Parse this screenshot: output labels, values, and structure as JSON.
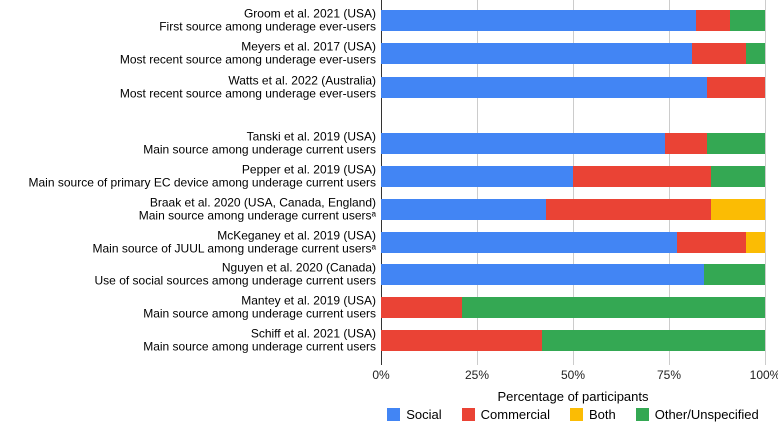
{
  "chart_data": {
    "type": "bar",
    "stacked": true,
    "orientation": "horizontal",
    "title": "",
    "xlabel": "Percentage of participants",
    "ylabel": "",
    "xlim": [
      0,
      100
    ],
    "grid": true,
    "legend_position": "bottom",
    "x_tick_values": [
      0,
      25,
      50,
      75,
      100
    ],
    "x_tick_labels": [
      "0%",
      "25%",
      "50%",
      "75%",
      "100%"
    ],
    "series": [
      "Social",
      "Commercial",
      "Both",
      "Other/Unspecified"
    ],
    "colors": {
      "social": "#4285F4",
      "commercial": "#EA4335",
      "both": "#FBBC04",
      "other_unspecified": "#34A853"
    },
    "legend": [
      {
        "label": "Social",
        "color": "#4285F4"
      },
      {
        "label": "Commercial",
        "color": "#EA4335"
      },
      {
        "label": "Both",
        "color": "#FBBC04"
      },
      {
        "label": "Other/Unspecified",
        "color": "#34A853"
      }
    ],
    "rows": [
      {
        "group": 1,
        "study": "Groom et al. 2021 (USA)",
        "measure": "First source among underage ever-users",
        "values": [
          82,
          9,
          0,
          9
        ]
      },
      {
        "group": 1,
        "study": "Meyers et al. 2017 (USA)",
        "measure": "Most recent source among underage ever-users",
        "values": [
          81,
          14,
          0,
          5
        ]
      },
      {
        "group": 1,
        "study": "Watts et al. 2022 (Australia)",
        "measure": "Most recent source among underage ever-users",
        "values": [
          85,
          15,
          0,
          0
        ]
      },
      {
        "group": 2,
        "study": "Tanski et al. 2019 (USA)",
        "measure": "Main source among underage current users",
        "values": [
          74,
          11,
          0,
          15
        ]
      },
      {
        "group": 2,
        "study": "Pepper et al. 2019 (USA)",
        "measure": "Main source of primary EC device among underage current users",
        "values": [
          50,
          36,
          0,
          14
        ]
      },
      {
        "group": 2,
        "study": "Braak et al. 2020 (USA, Canada, England)",
        "measure": "Main source among underage current usersᵃ",
        "values": [
          43,
          43,
          14,
          0
        ]
      },
      {
        "group": 2,
        "study": "McKeganey et al. 2019 (USA)",
        "measure": "Main source of JUUL among underage current usersᵃ",
        "values": [
          77,
          18,
          5,
          0
        ]
      },
      {
        "group": 2,
        "study": "Nguyen et al. 2020 (Canada)",
        "measure": "Use of social sources among underage current users",
        "values": [
          84,
          0,
          0,
          16
        ]
      },
      {
        "group": 2,
        "study": "Mantey et al. 2019 (USA)",
        "measure": "Main source among underage current users",
        "values": [
          0,
          21,
          0,
          79
        ]
      },
      {
        "group": 2,
        "study": "Schiff et al. 2021 (USA)",
        "measure": "Main source among underage current users",
        "values": [
          0,
          42,
          0,
          58
        ]
      }
    ]
  }
}
